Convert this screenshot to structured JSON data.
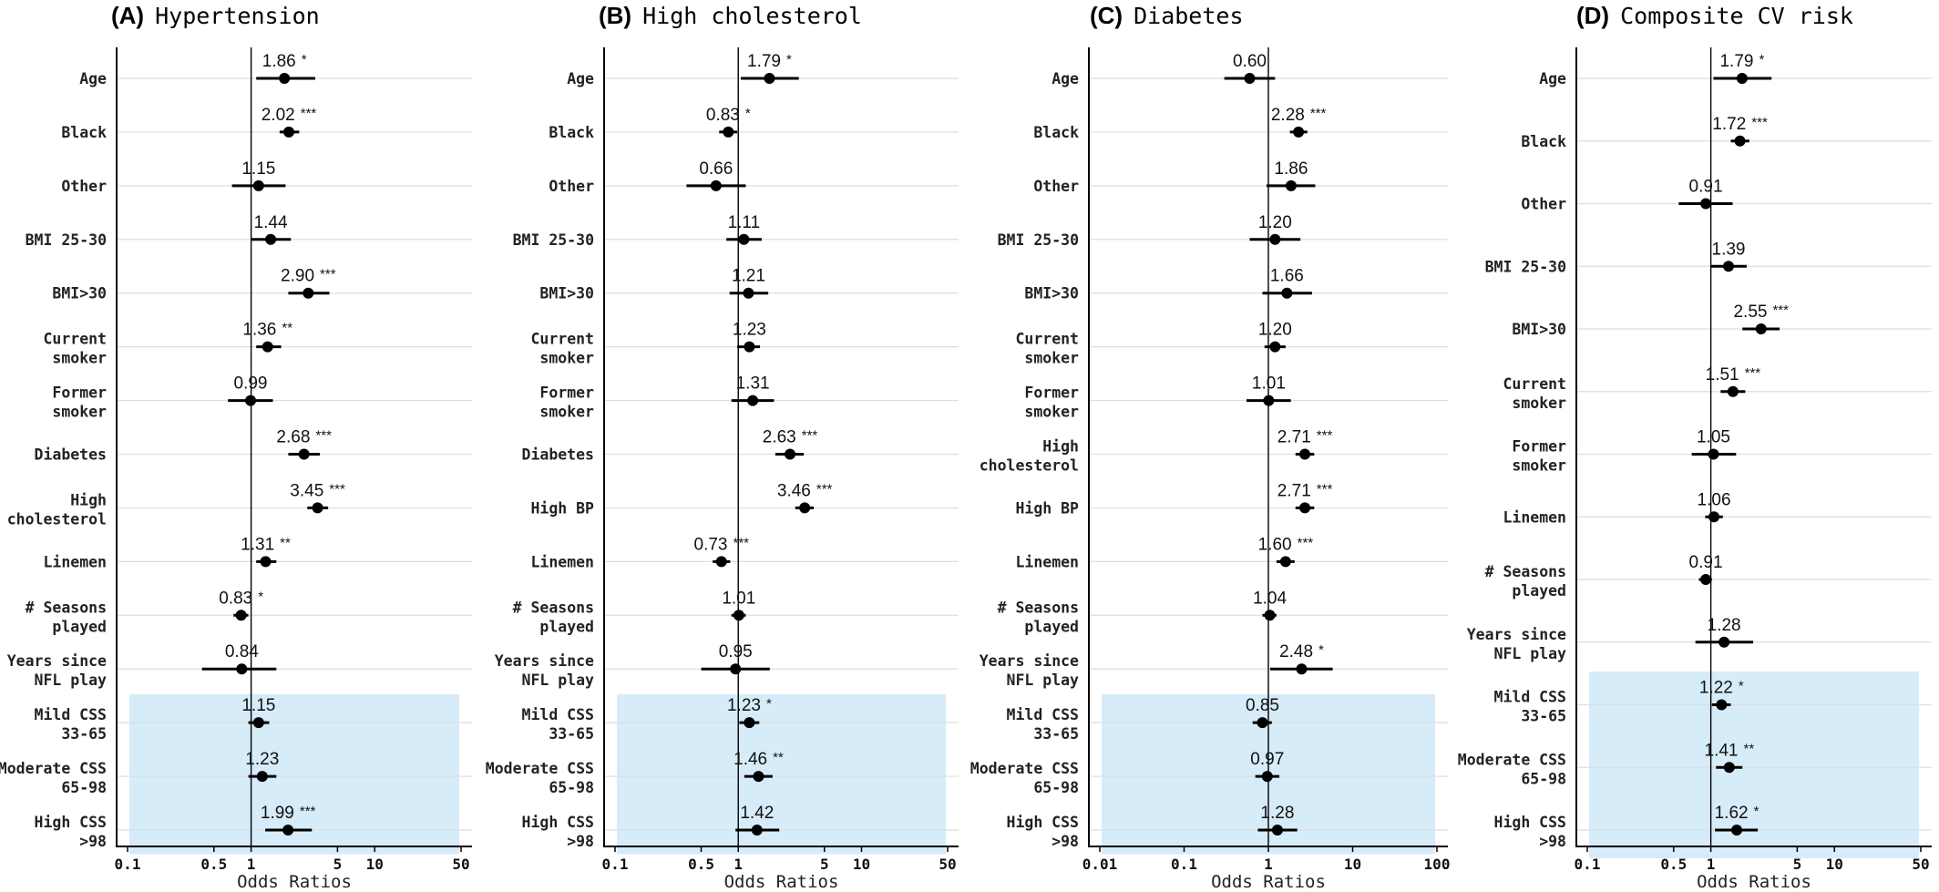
{
  "x_axis_label": "Odds Ratios",
  "chart_data": [
    {
      "type": "forest",
      "panel_letter": "(A)",
      "title": "Hypertension",
      "xlabel": "Odds Ratios",
      "xscale": "log",
      "xlim": [
        0.1,
        50
      ],
      "xticks": [
        0.1,
        0.5,
        1,
        5,
        10,
        50
      ],
      "xtick_labels": [
        "0.1",
        "0.5",
        "1",
        "5",
        "10",
        "50"
      ],
      "reference_line": 1,
      "highlight_rows": [
        "Mild CSS\n33-65",
        "Moderate CSS\n65-98",
        "High CSS\n>98"
      ],
      "rows": [
        {
          "label": "Age",
          "or": 1.86,
          "lo": 1.1,
          "hi": 3.3,
          "stars": "*",
          "or_text": "1.86"
        },
        {
          "label": "Black",
          "or": 2.02,
          "lo": 1.7,
          "hi": 2.45,
          "stars": "***",
          "or_text": "2.02"
        },
        {
          "label": "Other",
          "or": 1.15,
          "lo": 0.7,
          "hi": 1.9,
          "stars": "",
          "or_text": "1.15"
        },
        {
          "label": "BMI 25-30",
          "or": 1.44,
          "lo": 1.0,
          "hi": 2.1,
          "stars": "",
          "or_text": "1.44"
        },
        {
          "label": "BMI>30",
          "or": 2.9,
          "lo": 2.0,
          "hi": 4.3,
          "stars": "***",
          "or_text": "2.90"
        },
        {
          "label": "Current\nsmoker",
          "or": 1.36,
          "lo": 1.1,
          "hi": 1.75,
          "stars": "**",
          "or_text": "1.36"
        },
        {
          "label": "Former\nsmoker",
          "or": 0.99,
          "lo": 0.65,
          "hi": 1.5,
          "stars": "",
          "or_text": "0.99"
        },
        {
          "label": "Diabetes",
          "or": 2.68,
          "lo": 2.0,
          "hi": 3.6,
          "stars": "***",
          "or_text": "2.68"
        },
        {
          "label": "High\ncholesterol",
          "or": 3.45,
          "lo": 2.85,
          "hi": 4.2,
          "stars": "***",
          "or_text": "3.45"
        },
        {
          "label": "Linemen",
          "or": 1.31,
          "lo": 1.1,
          "hi": 1.6,
          "stars": "**",
          "or_text": "1.31"
        },
        {
          "label": "# Seasons\nplayed",
          "or": 0.83,
          "lo": 0.72,
          "hi": 0.95,
          "stars": "*",
          "or_text": "0.83"
        },
        {
          "label": "Years since\nNFL play",
          "or": 0.84,
          "lo": 0.4,
          "hi": 1.6,
          "stars": "",
          "or_text": "0.84"
        },
        {
          "label": "Mild CSS\n33-65",
          "or": 1.15,
          "lo": 0.95,
          "hi": 1.4,
          "stars": "",
          "or_text": "1.15"
        },
        {
          "label": "Moderate CSS\n65-98",
          "or": 1.23,
          "lo": 0.95,
          "hi": 1.6,
          "stars": "",
          "or_text": "1.23"
        },
        {
          "label": "High CSS\n>98",
          "or": 1.99,
          "lo": 1.3,
          "hi": 3.1,
          "stars": "***",
          "or_text": "1.99"
        }
      ]
    },
    {
      "type": "forest",
      "panel_letter": "(B)",
      "title": "High cholesterol",
      "xlabel": "Odds Ratios",
      "xscale": "log",
      "xlim": [
        0.1,
        50
      ],
      "xticks": [
        0.1,
        0.5,
        1,
        5,
        10,
        50
      ],
      "xtick_labels": [
        "0.1",
        "0.5",
        "1",
        "5",
        "10",
        "50"
      ],
      "reference_line": 1,
      "highlight_rows": [
        "Mild CSS\n33-65",
        "Moderate CSS\n65-98",
        "High CSS\n>98"
      ],
      "rows": [
        {
          "label": "Age",
          "or": 1.79,
          "lo": 1.05,
          "hi": 3.1,
          "stars": "*",
          "or_text": "1.79"
        },
        {
          "label": "Black",
          "or": 0.83,
          "lo": 0.7,
          "hi": 0.98,
          "stars": "*",
          "or_text": "0.83"
        },
        {
          "label": "Other",
          "or": 0.66,
          "lo": 0.38,
          "hi": 1.15,
          "stars": "",
          "or_text": "0.66"
        },
        {
          "label": "BMI 25-30",
          "or": 1.11,
          "lo": 0.8,
          "hi": 1.55,
          "stars": "",
          "or_text": "1.11"
        },
        {
          "label": "BMI>30",
          "or": 1.21,
          "lo": 0.85,
          "hi": 1.75,
          "stars": "",
          "or_text": "1.21"
        },
        {
          "label": "Current\nsmoker",
          "or": 1.23,
          "lo": 0.98,
          "hi": 1.5,
          "stars": "",
          "or_text": "1.23"
        },
        {
          "label": "Former\nsmoker",
          "or": 1.31,
          "lo": 0.88,
          "hi": 1.95,
          "stars": "",
          "or_text": "1.31"
        },
        {
          "label": "Diabetes",
          "or": 2.63,
          "lo": 2.0,
          "hi": 3.4,
          "stars": "***",
          "or_text": "2.63"
        },
        {
          "label": "High BP",
          "or": 3.46,
          "lo": 2.9,
          "hi": 4.1,
          "stars": "***",
          "or_text": "3.46"
        },
        {
          "label": "Linemen",
          "or": 0.73,
          "lo": 0.62,
          "hi": 0.86,
          "stars": "***",
          "or_text": "0.73"
        },
        {
          "label": "# Seasons\nplayed",
          "or": 1.01,
          "lo": 0.88,
          "hi": 1.15,
          "stars": "",
          "or_text": "1.01"
        },
        {
          "label": "Years since\nNFL play",
          "or": 0.95,
          "lo": 0.5,
          "hi": 1.8,
          "stars": "",
          "or_text": "0.95"
        },
        {
          "label": "Mild CSS\n33-65",
          "or": 1.23,
          "lo": 1.02,
          "hi": 1.48,
          "stars": "*",
          "or_text": "1.23"
        },
        {
          "label": "Moderate CSS\n65-98",
          "or": 1.46,
          "lo": 1.12,
          "hi": 1.9,
          "stars": "**",
          "or_text": "1.46"
        },
        {
          "label": "High CSS\n>98",
          "or": 1.42,
          "lo": 0.95,
          "hi": 2.15,
          "stars": "",
          "or_text": "1.42"
        }
      ]
    },
    {
      "type": "forest",
      "panel_letter": "(C)",
      "title": "Diabetes",
      "xlabel": "Odds Ratios",
      "xscale": "log",
      "xlim": [
        0.01,
        100
      ],
      "xticks": [
        0.01,
        0.1,
        1,
        10,
        100
      ],
      "xtick_labels": [
        "0.01",
        "0.1",
        "1",
        "10",
        "100"
      ],
      "reference_line": 1,
      "highlight_rows": [
        "Mild CSS\n33-65",
        "Moderate CSS\n65-98",
        "High CSS\n>98"
      ],
      "rows": [
        {
          "label": "Age",
          "or": 0.6,
          "lo": 0.3,
          "hi": 1.2,
          "stars": "",
          "or_text": "0.60"
        },
        {
          "label": "Black",
          "or": 2.28,
          "lo": 1.8,
          "hi": 2.9,
          "stars": "***",
          "or_text": "2.28"
        },
        {
          "label": "Other",
          "or": 1.86,
          "lo": 0.95,
          "hi": 3.6,
          "stars": "",
          "or_text": "1.86"
        },
        {
          "label": "BMI 25-30",
          "or": 1.2,
          "lo": 0.6,
          "hi": 2.4,
          "stars": "",
          "or_text": "1.20"
        },
        {
          "label": "BMI>30",
          "or": 1.66,
          "lo": 0.85,
          "hi": 3.3,
          "stars": "",
          "or_text": "1.66"
        },
        {
          "label": "Current\nsmoker",
          "or": 1.2,
          "lo": 0.9,
          "hi": 1.6,
          "stars": "",
          "or_text": "1.20"
        },
        {
          "label": "Former\nsmoker",
          "or": 1.01,
          "lo": 0.55,
          "hi": 1.85,
          "stars": "",
          "or_text": "1.01"
        },
        {
          "label": "High\ncholesterol",
          "or": 2.71,
          "lo": 2.1,
          "hi": 3.5,
          "stars": "***",
          "or_text": "2.71"
        },
        {
          "label": "High BP",
          "or": 2.71,
          "lo": 2.1,
          "hi": 3.5,
          "stars": "***",
          "or_text": "2.71"
        },
        {
          "label": "Linemen",
          "or": 1.6,
          "lo": 1.25,
          "hi": 2.05,
          "stars": "***",
          "or_text": "1.60"
        },
        {
          "label": "# Seasons\nplayed",
          "or": 1.04,
          "lo": 0.85,
          "hi": 1.25,
          "stars": "",
          "or_text": "1.04"
        },
        {
          "label": "Years since\nNFL play",
          "or": 2.48,
          "lo": 1.05,
          "hi": 5.8,
          "stars": "*",
          "or_text": "2.48"
        },
        {
          "label": "Mild CSS\n33-65",
          "or": 0.85,
          "lo": 0.65,
          "hi": 1.1,
          "stars": "",
          "or_text": "0.85"
        },
        {
          "label": "Moderate CSS\n65-98",
          "or": 0.97,
          "lo": 0.7,
          "hi": 1.35,
          "stars": "",
          "or_text": "0.97"
        },
        {
          "label": "High CSS\n>98",
          "or": 1.28,
          "lo": 0.75,
          "hi": 2.2,
          "stars": "",
          "or_text": "1.28"
        }
      ]
    },
    {
      "type": "forest",
      "panel_letter": "(D)",
      "title": "Composite CV risk",
      "xlabel": "Odds Ratios",
      "xscale": "log",
      "xlim": [
        0.1,
        50
      ],
      "xticks": [
        0.1,
        0.5,
        1,
        5,
        10,
        50
      ],
      "xtick_labels": [
        "0.1",
        "0.5",
        "1",
        "5",
        "10",
        "50"
      ],
      "reference_line": 1,
      "highlight_rows": [
        "Mild CSS\n33-65",
        "Moderate CSS\n65-98",
        "High CSS\n>98"
      ],
      "rows": [
        {
          "label": "Age",
          "or": 1.79,
          "lo": 1.05,
          "hi": 3.1,
          "stars": "*",
          "or_text": "1.79"
        },
        {
          "label": "Black",
          "or": 1.72,
          "lo": 1.45,
          "hi": 2.05,
          "stars": "***",
          "or_text": "1.72"
        },
        {
          "label": "Other",
          "or": 0.91,
          "lo": 0.55,
          "hi": 1.5,
          "stars": "",
          "or_text": "0.91"
        },
        {
          "label": "BMI 25-30",
          "or": 1.39,
          "lo": 1.0,
          "hi": 1.95,
          "stars": "",
          "or_text": "1.39"
        },
        {
          "label": "BMI>30",
          "or": 2.55,
          "lo": 1.8,
          "hi": 3.6,
          "stars": "***",
          "or_text": "2.55"
        },
        {
          "label": "Current\nsmoker",
          "or": 1.51,
          "lo": 1.2,
          "hi": 1.9,
          "stars": "***",
          "or_text": "1.51"
        },
        {
          "label": "Former\nsmoker",
          "or": 1.05,
          "lo": 0.7,
          "hi": 1.6,
          "stars": "",
          "or_text": "1.05"
        },
        {
          "label": "Linemen",
          "or": 1.06,
          "lo": 0.9,
          "hi": 1.25,
          "stars": "",
          "or_text": "1.06"
        },
        {
          "label": "# Seasons\nplayed",
          "or": 0.91,
          "lo": 0.8,
          "hi": 1.02,
          "stars": "",
          "or_text": "0.91"
        },
        {
          "label": "Years since\nNFL play",
          "or": 1.28,
          "lo": 0.75,
          "hi": 2.2,
          "stars": "",
          "or_text": "1.28"
        },
        {
          "label": "Mild CSS\n33-65",
          "or": 1.22,
          "lo": 1.02,
          "hi": 1.45,
          "stars": "*",
          "or_text": "1.22"
        },
        {
          "label": "Moderate CSS\n65-98",
          "or": 1.41,
          "lo": 1.1,
          "hi": 1.8,
          "stars": "**",
          "or_text": "1.41"
        },
        {
          "label": "High CSS\n>98",
          "or": 1.62,
          "lo": 1.08,
          "hi": 2.4,
          "stars": "*",
          "or_text": "1.62"
        }
      ]
    }
  ]
}
